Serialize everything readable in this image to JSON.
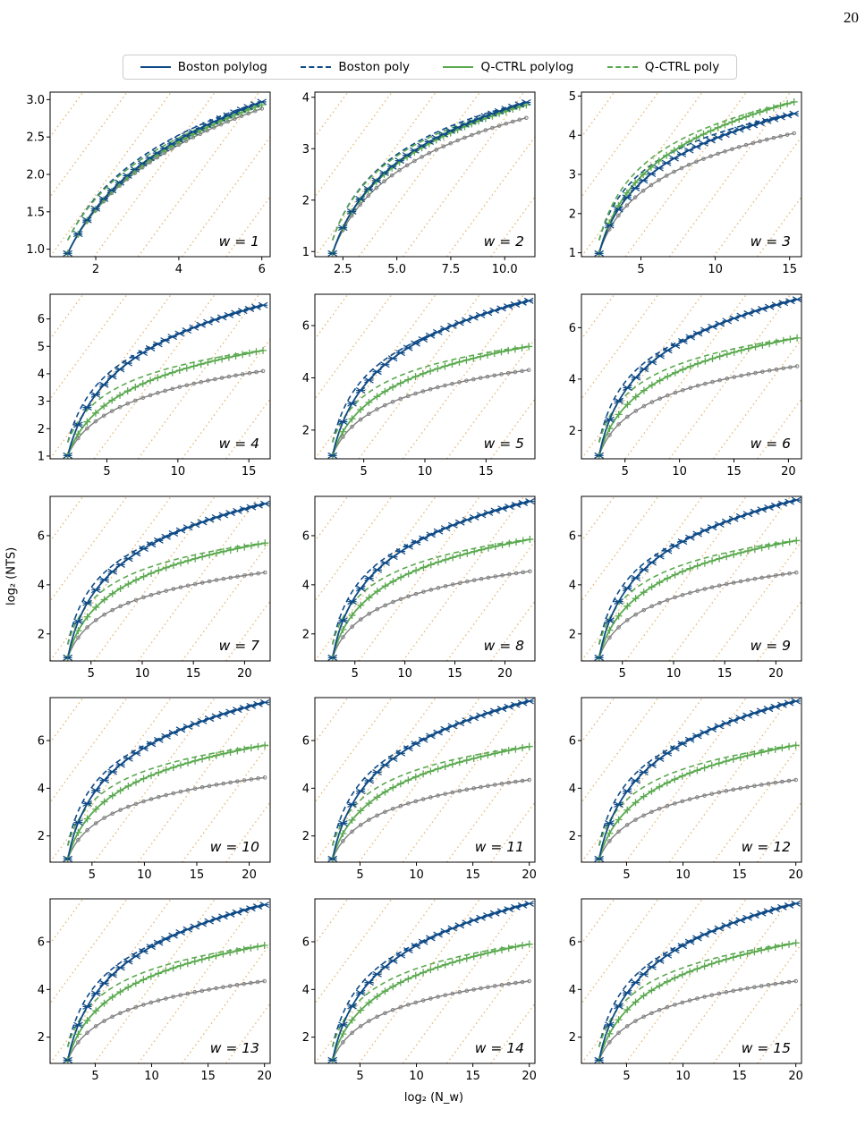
{
  "page_number": "20",
  "figure": {
    "xlabel": "log₂ (N_w)",
    "ylabel": "log₂ (NTS)"
  },
  "colors": {
    "boston": "#0e4a86",
    "qctrl": "#5aa94f",
    "reference": "#7f7f7f",
    "guide_lines": "#e3b97a"
  },
  "legend": [
    {
      "label": "Boston polylog",
      "color": "#0e4a86",
      "style": "solid"
    },
    {
      "label": "Boston poly",
      "color": "#0e4a86",
      "style": "dashed"
    },
    {
      "label": "Q-CTRL polylog",
      "color": "#5aa94f",
      "style": "solid"
    },
    {
      "label": "Q-CTRL poly",
      "color": "#5aa94f",
      "style": "dashed"
    }
  ],
  "chart_data": {
    "type": "line",
    "x_axis": "log2(N_w)",
    "y_axis": "log2(NTS)",
    "panels": [
      {
        "label": "w = 1",
        "xlim": [
          0.9,
          6.2
        ],
        "ylim": [
          0.9,
          3.1
        ],
        "xticks": [
          2,
          4,
          6
        ],
        "yticks": [
          "1.0",
          "1.5",
          "2.0",
          "2.5",
          "3.0"
        ],
        "x_end": 6.0,
        "boston_end": 2.97,
        "qctrl_end": 2.93,
        "reference_end": 2.88,
        "boston_poly_offset": -0.05,
        "qctrl_poly_offset": -0.08
      },
      {
        "label": "w = 2",
        "xlim": [
          1.2,
          11.4
        ],
        "ylim": [
          0.9,
          4.1
        ],
        "xticks": [
          "2.5",
          "5.0",
          "7.5",
          "10.0"
        ],
        "yticks": [
          "1",
          "2",
          "3",
          "4"
        ],
        "x_end": 11.0,
        "boston_end": 3.9,
        "qctrl_end": 3.85,
        "reference_end": 3.6,
        "boston_poly_offset": -0.03,
        "qctrl_poly_offset": -0.03
      },
      {
        "label": "w = 3",
        "xlim": [
          1.0,
          15.8
        ],
        "ylim": [
          0.9,
          5.1
        ],
        "xticks": [
          "5",
          "10",
          "15"
        ],
        "yticks": [
          "1",
          "2",
          "3",
          "4",
          "5"
        ],
        "x_end": 15.3,
        "boston_end": 4.55,
        "qctrl_end": 4.85,
        "reference_end": 4.05,
        "boston_poly_offset": -0.05,
        "qctrl_poly_offset": -0.05
      },
      {
        "label": "w = 4",
        "xlim": [
          1.0,
          16.5
        ],
        "ylim": [
          0.9,
          6.9
        ],
        "xticks": [
          "5",
          "10",
          "15"
        ],
        "yticks": [
          "1",
          "2",
          "3",
          "4",
          "5",
          "6"
        ],
        "x_end": 16.0,
        "boston_end": 6.5,
        "qctrl_end": 4.85,
        "reference_end": 4.1,
        "boston_poly_offset": -0.3,
        "qctrl_poly_offset": -0.05
      },
      {
        "label": "w = 5",
        "xlim": [
          1.0,
          19.0
        ],
        "ylim": [
          0.9,
          7.2
        ],
        "xticks": [
          "5",
          "10",
          "15"
        ],
        "yticks": [
          "2",
          "4",
          "6"
        ],
        "x_end": 18.5,
        "boston_end": 6.95,
        "qctrl_end": 5.2,
        "reference_end": 4.3,
        "boston_poly_offset": -0.3,
        "qctrl_poly_offset": -0.05
      },
      {
        "label": "w = 6",
        "xlim": [
          1.0,
          21.2
        ],
        "ylim": [
          0.9,
          7.3
        ],
        "xticks": [
          "5",
          "10",
          "15",
          "20"
        ],
        "yticks": [
          "2",
          "4",
          "6"
        ],
        "x_end": 20.8,
        "boston_end": 7.1,
        "qctrl_end": 5.6,
        "reference_end": 4.5,
        "boston_poly_offset": -0.3,
        "qctrl_poly_offset": -0.05
      },
      {
        "label": "w = 7",
        "xlim": [
          1.0,
          22.5
        ],
        "ylim": [
          0.9,
          7.6
        ],
        "xticks": [
          "5",
          "10",
          "15",
          "20"
        ],
        "yticks": [
          "2",
          "4",
          "6"
        ],
        "x_end": 22.0,
        "boston_end": 7.3,
        "qctrl_end": 5.7,
        "reference_end": 4.5,
        "boston_poly_offset": -0.3,
        "qctrl_poly_offset": -0.05
      },
      {
        "label": "w = 8",
        "xlim": [
          1.0,
          23.0
        ],
        "ylim": [
          0.9,
          7.6
        ],
        "xticks": [
          "5",
          "10",
          "15",
          "20"
        ],
        "yticks": [
          "2",
          "4",
          "6"
        ],
        "x_end": 22.5,
        "boston_end": 7.4,
        "qctrl_end": 5.85,
        "reference_end": 4.55,
        "boston_poly_offset": -0.3,
        "qctrl_poly_offset": -0.05
      },
      {
        "label": "w = 9",
        "xlim": [
          1.0,
          22.5
        ],
        "ylim": [
          0.9,
          7.6
        ],
        "xticks": [
          "5",
          "10",
          "15",
          "20"
        ],
        "yticks": [
          "2",
          "4",
          "6"
        ],
        "x_end": 22.0,
        "boston_end": 7.45,
        "qctrl_end": 5.8,
        "reference_end": 4.5,
        "boston_poly_offset": -0.3,
        "qctrl_poly_offset": -0.05
      },
      {
        "label": "w = 10",
        "xlim": [
          1.0,
          22.0
        ],
        "ylim": [
          0.9,
          7.8
        ],
        "xticks": [
          "5",
          "10",
          "15",
          "20"
        ],
        "yticks": [
          "2",
          "4",
          "6"
        ],
        "x_end": 21.5,
        "boston_end": 7.6,
        "qctrl_end": 5.8,
        "reference_end": 4.45,
        "boston_poly_offset": -0.3,
        "qctrl_poly_offset": -0.05
      },
      {
        "label": "w = 11",
        "xlim": [
          1.0,
          20.5
        ],
        "ylim": [
          0.9,
          7.8
        ],
        "xticks": [
          "5",
          "10",
          "15",
          "20"
        ],
        "yticks": [
          "2",
          "4",
          "6"
        ],
        "x_end": 20.0,
        "boston_end": 7.65,
        "qctrl_end": 5.75,
        "reference_end": 4.35,
        "boston_poly_offset": -0.3,
        "qctrl_poly_offset": -0.05
      },
      {
        "label": "w = 12",
        "xlim": [
          1.0,
          20.5
        ],
        "ylim": [
          0.9,
          7.8
        ],
        "xticks": [
          "5",
          "10",
          "15",
          "20"
        ],
        "yticks": [
          "2",
          "4",
          "6"
        ],
        "x_end": 20.0,
        "boston_end": 7.65,
        "qctrl_end": 5.8,
        "reference_end": 4.35,
        "boston_poly_offset": -0.3,
        "qctrl_poly_offset": -0.05
      },
      {
        "label": "w = 13",
        "xlim": [
          1.0,
          20.5
        ],
        "ylim": [
          0.9,
          7.8
        ],
        "xticks": [
          "5",
          "10",
          "15",
          "20"
        ],
        "yticks": [
          "2",
          "4",
          "6"
        ],
        "x_end": 20.0,
        "boston_end": 7.55,
        "qctrl_end": 5.85,
        "reference_end": 4.35,
        "boston_poly_offset": -0.3,
        "qctrl_poly_offset": -0.05
      },
      {
        "label": "w = 14",
        "xlim": [
          1.0,
          20.5
        ],
        "ylim": [
          0.9,
          7.8
        ],
        "xticks": [
          "5",
          "10",
          "15",
          "20"
        ],
        "yticks": [
          "2",
          "4",
          "6"
        ],
        "x_end": 20.0,
        "boston_end": 7.6,
        "qctrl_end": 5.9,
        "reference_end": 4.35,
        "boston_poly_offset": -0.3,
        "qctrl_poly_offset": -0.05
      },
      {
        "label": "w = 15",
        "xlim": [
          1.0,
          20.5
        ],
        "ylim": [
          0.9,
          7.8
        ],
        "xticks": [
          "5",
          "10",
          "15",
          "20"
        ],
        "yticks": [
          "2",
          "4",
          "6"
        ],
        "x_end": 20.0,
        "boston_end": 7.6,
        "qctrl_end": 5.95,
        "reference_end": 4.35,
        "boston_poly_offset": -0.3,
        "qctrl_poly_offset": -0.05
      }
    ]
  }
}
